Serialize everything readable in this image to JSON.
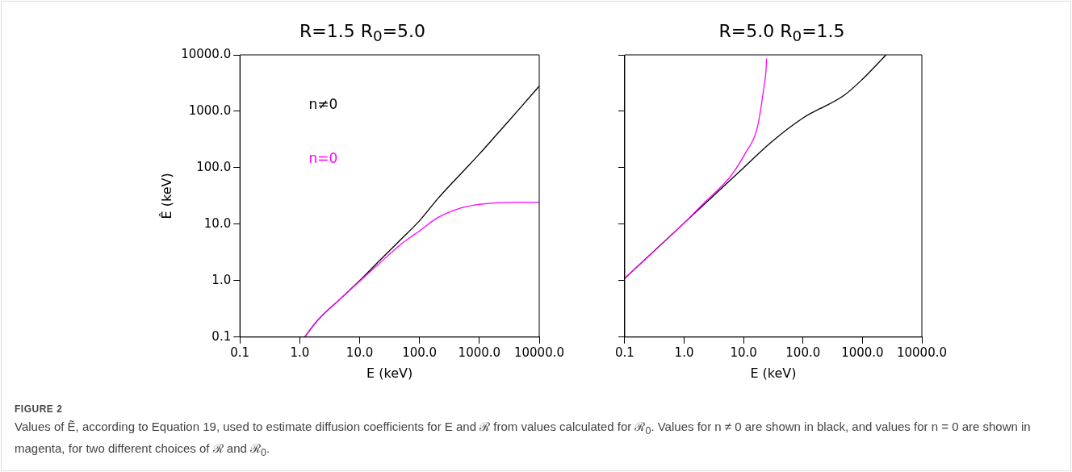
{
  "chart_data": [
    {
      "type": "line",
      "title": "R=1.5    R$_{0}$=5.0",
      "xlabel": "E (keV)",
      "ylabel": "Ê (keV)",
      "log": "xy",
      "legend": false,
      "grid": false,
      "xlim": [
        0.1,
        10000
      ],
      "ylim": [
        0.1,
        10000
      ],
      "xticks": [
        {
          "value": 0.1,
          "label": "0.1"
        },
        {
          "value": 1,
          "label": "1.0"
        },
        {
          "value": 10,
          "label": "10.0"
        },
        {
          "value": 100,
          "label": "100.0"
        },
        {
          "value": 1000,
          "label": "1000.0"
        },
        {
          "value": 10000,
          "label": "10000.0"
        }
      ],
      "yticks": [
        {
          "value": 0.1,
          "label": "0.1"
        },
        {
          "value": 1,
          "label": "1.0"
        },
        {
          "value": 10,
          "label": "10.0"
        },
        {
          "value": 100,
          "label": "100.0"
        },
        {
          "value": 1000,
          "label": "1000.0"
        },
        {
          "value": 10000,
          "label": "10000.0"
        }
      ],
      "series": [
        {
          "name": "n≠0",
          "color": "#000000",
          "x": [
            1.2,
            2,
            5,
            10,
            20,
            50,
            100,
            200,
            500,
            1000,
            2000,
            5000,
            10000
          ],
          "values": [
            0.1,
            0.2,
            0.5,
            1.0,
            2.1,
            5.5,
            11.5,
            28,
            80,
            175,
            400,
            1200,
            2800
          ]
        },
        {
          "name": "n=0",
          "color": "#ff00ff",
          "x": [
            1.2,
            2,
            5,
            10,
            20,
            50,
            100,
            200,
            500,
            1000,
            2000,
            5000,
            10000
          ],
          "values": [
            0.1,
            0.2,
            0.5,
            0.98,
            1.9,
            4.5,
            7.6,
            13,
            19.5,
            22.5,
            24,
            24.5,
            24.5
          ]
        }
      ],
      "annotations": [
        "FIGURE 2",
        "Values of Ẽ, according to Equation 19, used to estimate diffusion coefficients for E and ℛ from values calculated for ℛ$_{0}$. Values for n ≠ 0 are shown in black, and values for n = 0 are shown in magenta, for two different choices of ℛ and ℛ$_{0}$."
      ]
    },
    {
      "type": "line",
      "title": "R=5.0    R$_{0}$=1.5",
      "xlabel": "E (keV)",
      "log": "xy",
      "legend": false,
      "grid": false,
      "tick_labels": "x",
      "xlim": [
        0.1,
        10000
      ],
      "ylim": [
        0.1,
        10000
      ],
      "xticks": [
        {
          "value": 0.1,
          "label": "0.1"
        },
        {
          "value": 1,
          "label": "1.0"
        },
        {
          "value": 10,
          "label": "10.0"
        },
        {
          "value": 100,
          "label": "100.0"
        },
        {
          "value": 1000,
          "label": "1000.0"
        },
        {
          "value": 10000,
          "label": "10000.0"
        }
      ],
      "yticks": [
        {
          "value": 0.1,
          "label": null
        },
        {
          "value": 1,
          "label": null
        },
        {
          "value": 10,
          "label": null
        },
        {
          "value": 100,
          "label": null
        },
        {
          "value": 1000,
          "label": null
        },
        {
          "value": 10000,
          "label": null
        }
      ],
      "series": [
        {
          "color": "#000000",
          "x": [
            0.1,
            1,
            10,
            30,
            100,
            500,
            1000,
            2500
          ],
          "values": [
            1.1,
            10.5,
            100,
            290,
            760,
            1950,
            3700,
            10000
          ]
        },
        {
          "color": "#ff00ff",
          "x": [
            0.1,
            1,
            2,
            6,
            11,
            17,
            22,
            24,
            24.3
          ],
          "values": [
            1.1,
            10.5,
            22,
            70,
            190,
            510,
            2700,
            6000,
            8600
          ]
        }
      ]
    }
  ]
}
